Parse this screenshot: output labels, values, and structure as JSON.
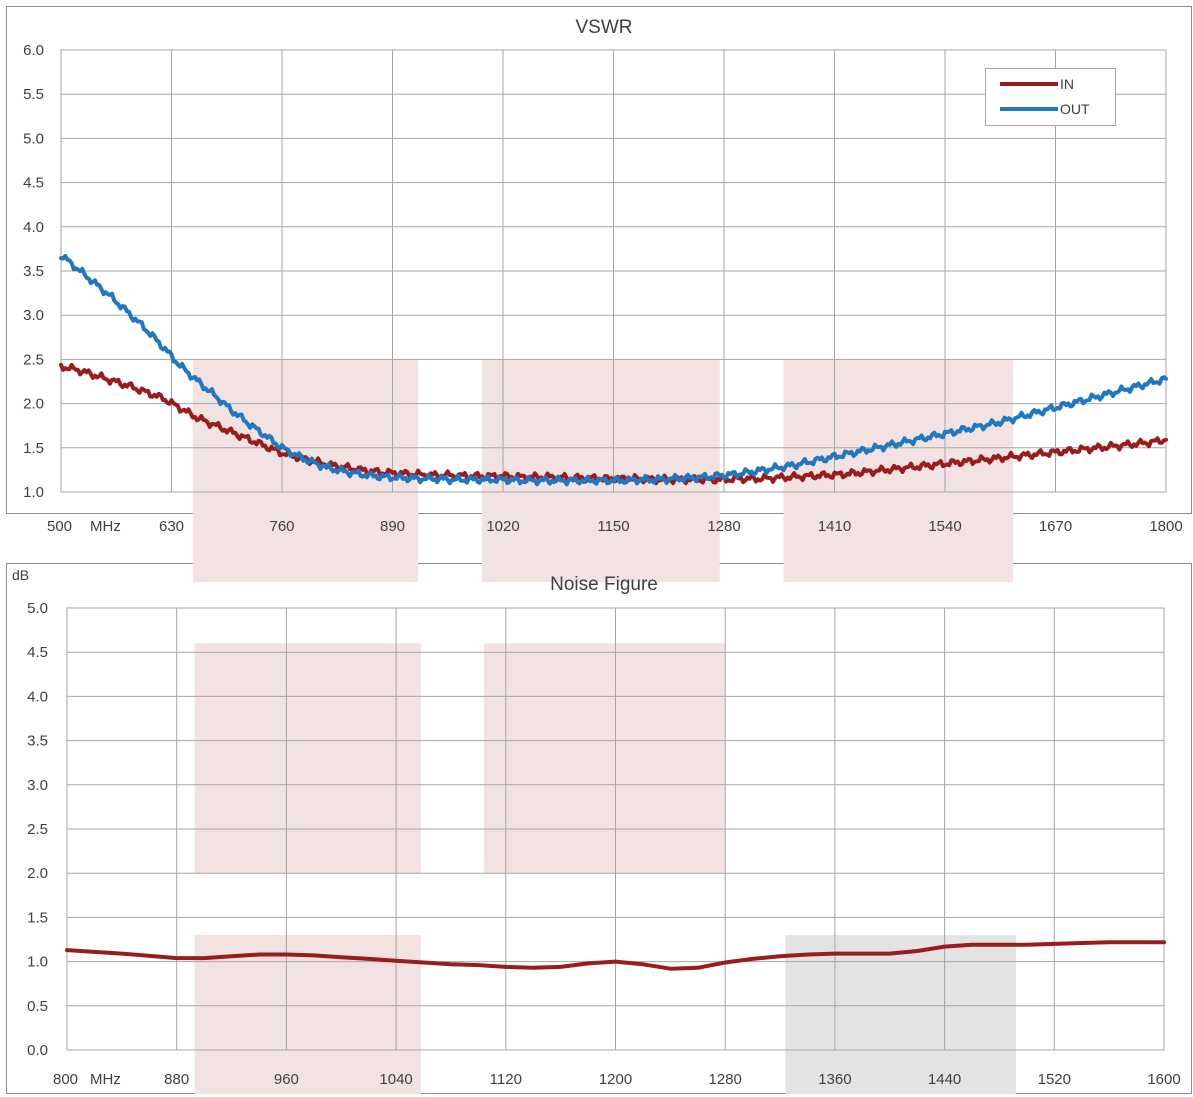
{
  "colors": {
    "in": "#9b1c1c",
    "out": "#1f78c0",
    "shade": "#f2e2e2",
    "shade_gray": "#e3e3e3",
    "grid": "#a6a6a6",
    "border": "#8c8c8c"
  },
  "chart_data": [
    {
      "type": "line",
      "title": "VSWR",
      "x_unit": "MHz",
      "xlim": [
        500,
        1800
      ],
      "ylim": [
        1.0,
        6.0
      ],
      "x_ticks": [
        "500",
        "630",
        "760",
        "890",
        "1020",
        "1150",
        "1280",
        "1410",
        "1540",
        "1670",
        "1800"
      ],
      "y_ticks": [
        "1.0",
        "1.5",
        "2.0",
        "2.5",
        "3.0",
        "3.5",
        "4.0",
        "4.5",
        "5.0",
        "5.5",
        "6.0"
      ],
      "grid": true,
      "legend": {
        "placement": "top-right",
        "entries": [
          "IN",
          "OUT"
        ]
      },
      "series": [
        {
          "name": "IN",
          "color": "#9b1c1c",
          "x": [
            500,
            520,
            540,
            560,
            580,
            600,
            620,
            640,
            660,
            680,
            700,
            720,
            740,
            760,
            780,
            800,
            820,
            840,
            860,
            880,
            900,
            920,
            940,
            960,
            980,
            1000,
            1020,
            1040,
            1060,
            1080,
            1100,
            1120,
            1140,
            1160,
            1180,
            1200,
            1220,
            1240,
            1260,
            1280,
            1300,
            1320,
            1340,
            1360,
            1380,
            1400,
            1420,
            1440,
            1460,
            1480,
            1500,
            1520,
            1540,
            1560,
            1580,
            1600,
            1620,
            1640,
            1660,
            1680,
            1700,
            1720,
            1740,
            1760,
            1780,
            1800
          ],
          "y": [
            2.42,
            2.38,
            2.32,
            2.26,
            2.2,
            2.13,
            2.06,
            1.95,
            1.84,
            1.76,
            1.68,
            1.6,
            1.52,
            1.44,
            1.39,
            1.34,
            1.3,
            1.27,
            1.24,
            1.22,
            1.21,
            1.2,
            1.19,
            1.19,
            1.18,
            1.18,
            1.18,
            1.17,
            1.17,
            1.17,
            1.16,
            1.16,
            1.15,
            1.15,
            1.15,
            1.14,
            1.14,
            1.14,
            1.14,
            1.14,
            1.15,
            1.15,
            1.16,
            1.17,
            1.18,
            1.19,
            1.2,
            1.22,
            1.24,
            1.26,
            1.28,
            1.3,
            1.32,
            1.34,
            1.36,
            1.38,
            1.4,
            1.42,
            1.44,
            1.46,
            1.48,
            1.5,
            1.52,
            1.54,
            1.56,
            1.59
          ]
        },
        {
          "name": "OUT",
          "color": "#1f78c0",
          "x": [
            500,
            520,
            540,
            560,
            580,
            600,
            620,
            640,
            660,
            680,
            700,
            720,
            740,
            760,
            780,
            800,
            820,
            840,
            860,
            880,
            900,
            920,
            940,
            960,
            980,
            1000,
            1020,
            1040,
            1060,
            1080,
            1100,
            1120,
            1140,
            1160,
            1180,
            1200,
            1220,
            1240,
            1260,
            1280,
            1300,
            1320,
            1340,
            1360,
            1380,
            1400,
            1420,
            1440,
            1460,
            1480,
            1500,
            1520,
            1540,
            1560,
            1580,
            1600,
            1620,
            1640,
            1660,
            1680,
            1700,
            1720,
            1740,
            1760,
            1780,
            1800
          ],
          "y": [
            3.68,
            3.52,
            3.36,
            3.2,
            3.02,
            2.84,
            2.64,
            2.43,
            2.26,
            2.1,
            1.93,
            1.78,
            1.64,
            1.5,
            1.4,
            1.32,
            1.26,
            1.22,
            1.19,
            1.17,
            1.16,
            1.15,
            1.15,
            1.14,
            1.14,
            1.14,
            1.14,
            1.13,
            1.13,
            1.13,
            1.13,
            1.13,
            1.13,
            1.13,
            1.14,
            1.14,
            1.15,
            1.16,
            1.17,
            1.19,
            1.21,
            1.24,
            1.27,
            1.3,
            1.34,
            1.38,
            1.42,
            1.46,
            1.5,
            1.54,
            1.58,
            1.62,
            1.66,
            1.7,
            1.74,
            1.78,
            1.83,
            1.88,
            1.93,
            1.98,
            2.03,
            2.08,
            2.13,
            2.18,
            2.23,
            2.28
          ]
        }
      ],
      "shaded_bands": [
        {
          "x": [
            655,
            920
          ],
          "y_top": 2.5,
          "tone": "pink"
        },
        {
          "x": [
            995,
            1275
          ],
          "y_top": 2.5,
          "tone": "pink"
        },
        {
          "x": [
            1350,
            1620
          ],
          "y_top": 2.5,
          "tone": "pink"
        }
      ]
    },
    {
      "type": "line",
      "title": "Noise Figure",
      "x_unit": "MHz",
      "ylabel": "dB",
      "xlim": [
        800,
        1600
      ],
      "ylim": [
        0.0,
        5.0
      ],
      "x_ticks": [
        "800",
        "880",
        "960",
        "1040",
        "1120",
        "1200",
        "1280",
        "1360",
        "1440",
        "1520",
        "1600"
      ],
      "y_ticks": [
        "0.0",
        "0.5",
        "1.0",
        "1.5",
        "2.0",
        "2.5",
        "3.0",
        "3.5",
        "4.0",
        "4.5",
        "5.0"
      ],
      "grid": true,
      "series": [
        {
          "color": "#9b1c1c",
          "x": [
            800,
            840,
            880,
            900,
            920,
            940,
            960,
            980,
            1000,
            1020,
            1040,
            1060,
            1080,
            1100,
            1120,
            1140,
            1160,
            1180,
            1200,
            1220,
            1240,
            1260,
            1280,
            1300,
            1320,
            1340,
            1360,
            1380,
            1400,
            1420,
            1440,
            1460,
            1480,
            1500,
            1520,
            1540,
            1560,
            1580,
            1600
          ],
          "y": [
            1.13,
            1.09,
            1.04,
            1.04,
            1.06,
            1.08,
            1.08,
            1.07,
            1.05,
            1.03,
            1.01,
            0.99,
            0.97,
            0.96,
            0.94,
            0.93,
            0.94,
            0.98,
            1.0,
            0.97,
            0.92,
            0.93,
            0.99,
            1.03,
            1.06,
            1.08,
            1.09,
            1.09,
            1.09,
            1.12,
            1.17,
            1.19,
            1.19,
            1.19,
            1.2,
            1.21,
            1.22,
            1.22,
            1.22
          ]
        }
      ],
      "shaded_bands": [
        {
          "x": [
            893,
            1058
          ],
          "y_range": [
            2.0,
            4.6
          ],
          "tone": "pink"
        },
        {
          "x": [
            1104,
            1280
          ],
          "y_range": [
            2.0,
            4.6
          ],
          "tone": "pink"
        },
        {
          "x": [
            893,
            1058
          ],
          "y_range": [
            -0.5,
            1.3
          ],
          "tone": "pink"
        },
        {
          "x": [
            1324,
            1492
          ],
          "y_range": [
            -0.5,
            1.3
          ],
          "tone": "gray"
        }
      ]
    }
  ]
}
